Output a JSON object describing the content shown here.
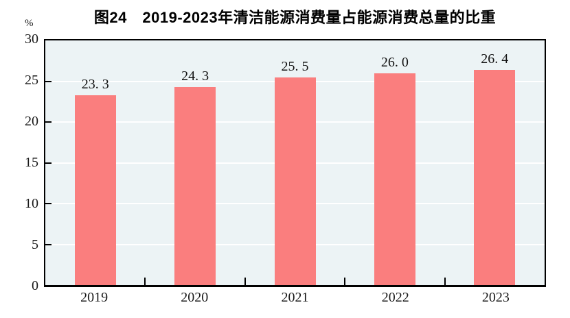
{
  "chart_data": {
    "type": "bar",
    "title": "图24　2019-2023年清洁能源消费量占能源消费总量的比重",
    "y_unit": "%",
    "categories": [
      "2019",
      "2020",
      "2021",
      "2022",
      "2023"
    ],
    "values": [
      23.3,
      24.3,
      25.5,
      26.0,
      26.4
    ],
    "value_labels": [
      "23. 3",
      "24. 3",
      "25. 5",
      "26. 0",
      "26. 4"
    ],
    "ylim": [
      0,
      30
    ],
    "y_ticks": [
      0,
      5,
      10,
      15,
      20,
      25,
      30
    ],
    "grid": {
      "horizontal": true,
      "vertical": false,
      "gridline_color": "#FFFFFF"
    },
    "legend_position": "none",
    "colors": {
      "bar": "#FA7E7E",
      "plot_background": "#ECF3F5",
      "axis": "#000000",
      "title_text": "#000000",
      "tick_text": "#1A1A1A"
    }
  }
}
